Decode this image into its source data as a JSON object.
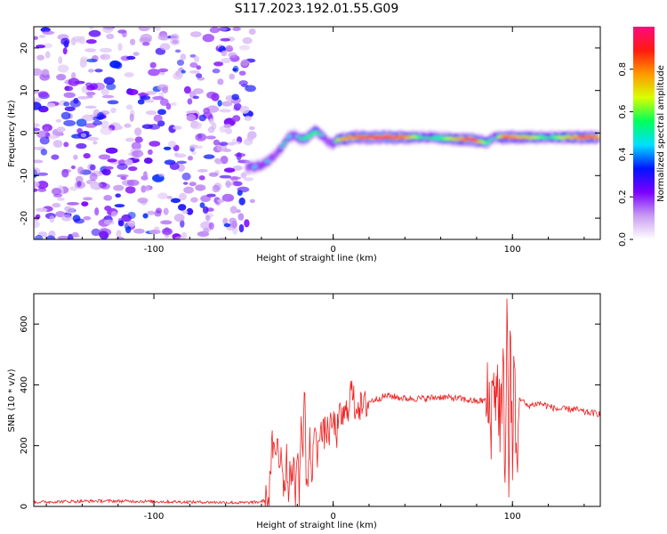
{
  "title": "S117.2023.192.01.55.G09",
  "chart_data": [
    {
      "type": "heatmap",
      "xlabel": "Height of straight line (km)",
      "ylabel": "Frequency (Hz)",
      "xlim": [
        -167,
        149
      ],
      "ylim": [
        -25,
        25
      ],
      "xticks": [
        "-100",
        "0",
        "100"
      ],
      "xtick_values": [
        -100,
        0,
        100
      ],
      "yticks": [
        "-20",
        "-10",
        "0",
        "10",
        "20"
      ],
      "ytick_values": [
        -20,
        -10,
        0,
        10,
        20
      ],
      "colorbar": {
        "label": "Normalized spectral amplitude",
        "range": [
          0,
          1
        ],
        "ticks": [
          "0.0",
          "0.2",
          "0.4",
          "0.6",
          "0.8"
        ],
        "tick_values": [
          0,
          0.2,
          0.4,
          0.6,
          0.8
        ],
        "colors": [
          "#ffffff",
          "#c89cf2",
          "#7a00ff",
          "#0014ff",
          "#00e0ff",
          "#00ff5a",
          "#d8ff00",
          "#ff9800",
          "#ff1a10",
          "#ff0a80"
        ]
      },
      "noise_region": {
        "x": [
          -167,
          -45
        ],
        "y": [
          -25,
          25
        ]
      },
      "ridge": {
        "x": [
          -48,
          -44,
          -40,
          -36,
          -32,
          -28,
          -25,
          -22,
          -18,
          -14,
          -10,
          -6,
          -3,
          0,
          3,
          6,
          10,
          20,
          30,
          40,
          50,
          60,
          70,
          78,
          82,
          86,
          90,
          95,
          100,
          110,
          120,
          130,
          140,
          148
        ],
        "y": [
          -8,
          -8,
          -7.5,
          -6.5,
          -5,
          -3,
          -1,
          -0.5,
          -1.5,
          -1,
          0.5,
          -0.5,
          -2,
          -2.5,
          -1.5,
          -1.5,
          -1,
          -1,
          -1,
          -1,
          -1,
          -1.2,
          -1.5,
          -1.5,
          -2,
          -2.2,
          -1,
          -1,
          -1,
          -1,
          -1,
          -1,
          -1,
          -1
        ],
        "amplitude": [
          0.35,
          0.45,
          0.4,
          0.45,
          0.35,
          0.5,
          0.45,
          0.4,
          0.5,
          0.55,
          0.55,
          0.45,
          0.35,
          0.4,
          0.7,
          0.75,
          0.8,
          0.9,
          0.9,
          0.8,
          0.5,
          0.55,
          0.75,
          0.95,
          0.7,
          0.55,
          0.4,
          0.85,
          0.8,
          0.7,
          0.5,
          0.7,
          0.85,
          0.8
        ]
      }
    },
    {
      "type": "line",
      "xlabel": "Height of straight line (km)",
      "ylabel": "SNR (10 * v/v)",
      "xlim": [
        -167,
        149
      ],
      "ylim": [
        0,
        700
      ],
      "xticks": [
        "-100",
        "0",
        "100"
      ],
      "xtick_values": [
        -100,
        0,
        100
      ],
      "yticks": [
        "0",
        "200",
        "400",
        "600"
      ],
      "ytick_values": [
        0,
        200,
        400,
        600
      ],
      "color": "#ee2222",
      "series": [
        {
          "x": [
            -167,
            -150,
            -130,
            -110,
            -90,
            -70,
            -50,
            -42,
            -36,
            -34,
            -32,
            -31,
            -30,
            -29,
            -28,
            -27,
            -26,
            -25,
            -24,
            -23,
            -22,
            -21,
            -20,
            -19,
            -18,
            -17,
            -16,
            -15,
            -14,
            -13,
            -12,
            -11,
            -10,
            -9,
            -8,
            -6,
            -4,
            -2,
            0,
            2,
            4,
            6,
            8,
            10,
            12,
            14,
            16,
            20,
            25,
            30,
            35,
            40,
            50,
            60,
            70,
            80,
            85,
            88,
            90,
            92,
            94,
            95,
            96,
            97,
            98,
            99,
            100,
            101,
            102,
            104,
            108,
            115,
            125,
            135,
            140,
            149
          ],
          "y": [
            14,
            16,
            18,
            17,
            15,
            14,
            12,
            14,
            22,
            200,
            140,
            250,
            120,
            210,
            90,
            60,
            180,
            40,
            150,
            95,
            120,
            40,
            210,
            30,
            260,
            180,
            405,
            90,
            70,
            240,
            30,
            260,
            250,
            140,
            270,
            230,
            250,
            245,
            280,
            240,
            300,
            290,
            320,
            390,
            330,
            340,
            320,
            345,
            355,
            365,
            360,
            355,
            355,
            360,
            355,
            345,
            350,
            300,
            420,
            360,
            280,
            410,
            120,
            690,
            40,
            650,
            10,
            540,
            130,
            360,
            330,
            340,
            320,
            320,
            310,
            305
          ]
        }
      ]
    }
  ]
}
